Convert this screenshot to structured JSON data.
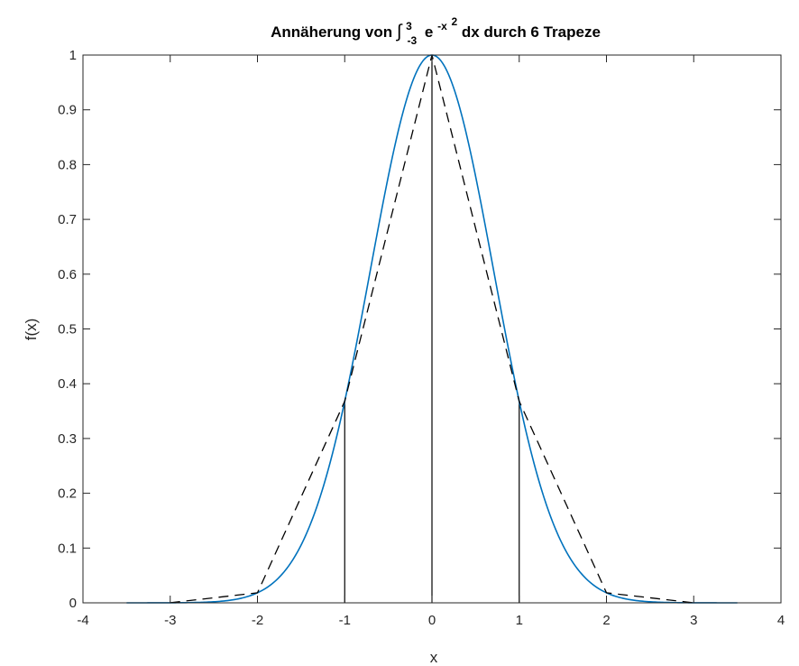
{
  "chart_data": {
    "type": "line",
    "title": {
      "prefix": "Annäherung von ",
      "integral_sign": "∫",
      "upper_limit": "3",
      "lower_limit": "-3",
      "integrand_base": "e",
      "integrand_exponent": "-x",
      "integrand_exponent_power": "2",
      "suffix": " dx durch 6 Trapeze"
    },
    "xlabel": "x",
    "ylabel": "f(x)",
    "xlim": [
      -4,
      4
    ],
    "ylim": [
      0,
      1
    ],
    "x_ticks": [
      -4,
      -3,
      -2,
      -1,
      0,
      1,
      2,
      3,
      4
    ],
    "x_tick_labels": [
      "-4",
      "-3",
      "-2",
      "-1",
      "0",
      "1",
      "2",
      "3",
      "4"
    ],
    "y_ticks": [
      0,
      0.1,
      0.2,
      0.3,
      0.4,
      0.5,
      0.6,
      0.7,
      0.8,
      0.9,
      1
    ],
    "y_tick_labels": [
      "0",
      "0.1",
      "0.2",
      "0.3",
      "0.4",
      "0.5",
      "0.6",
      "0.7",
      "0.8",
      "0.9",
      "1"
    ],
    "grid": false,
    "series": [
      {
        "function": "exp(-x^2)",
        "x_range": [
          -3.5,
          3.5
        ],
        "color": "#0072BD",
        "style": "solid"
      },
      {
        "x": [
          -3,
          -2,
          -1,
          0,
          1,
          2,
          3
        ],
        "y": [
          0.0001,
          0.0183,
          0.3679,
          1,
          0.3679,
          0.0183,
          0.0001
        ],
        "color": "#000000",
        "style": "dashed"
      }
    ],
    "vertical_lines": {
      "x": [
        -1,
        0,
        1
      ],
      "y": [
        0.3679,
        1,
        0.3679
      ],
      "color": "#000000"
    }
  }
}
